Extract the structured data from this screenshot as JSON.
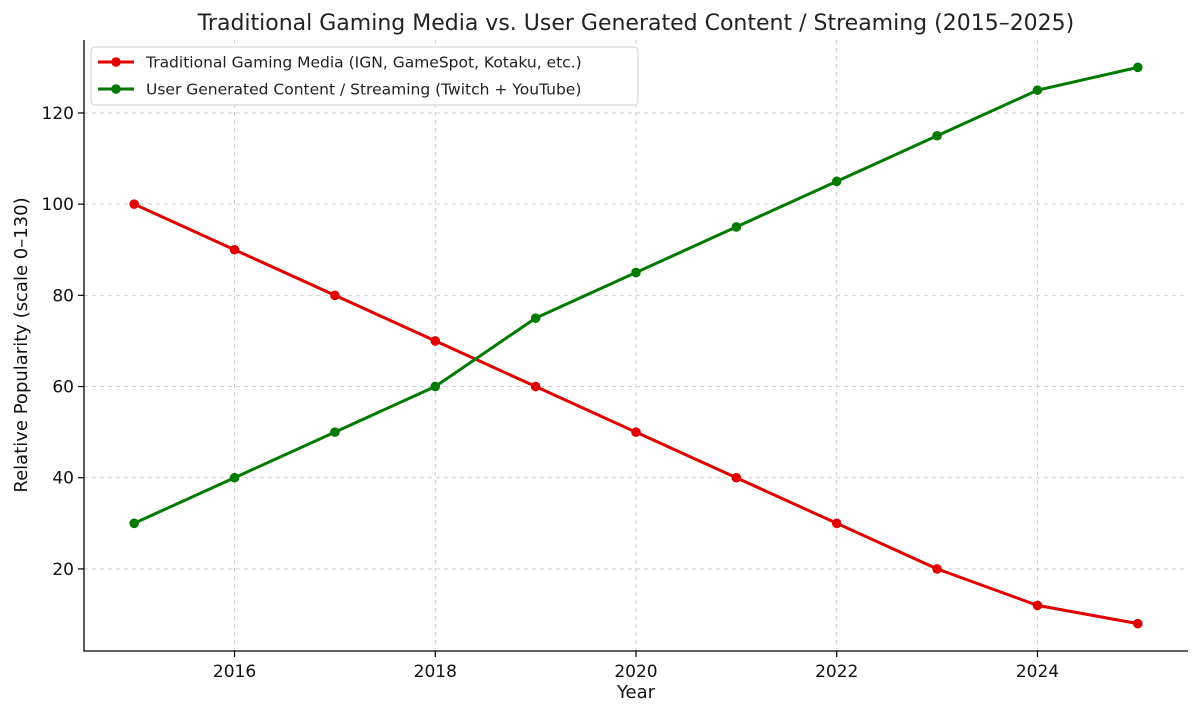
{
  "chart_data": {
    "type": "line",
    "title": "Traditional Gaming Media vs. User Generated Content / Streaming (2015–2025)",
    "xlabel": "Year",
    "ylabel": "Relative Popularity (scale 0–130)",
    "x": [
      2015,
      2016,
      2017,
      2018,
      2019,
      2020,
      2021,
      2022,
      2023,
      2024,
      2025
    ],
    "xlim": [
      2014.5,
      2025.5
    ],
    "ylim": [
      2,
      136
    ],
    "xticks": [
      2016,
      2018,
      2020,
      2022,
      2024
    ],
    "yticks": [
      20,
      40,
      60,
      80,
      100,
      120
    ],
    "grid": true,
    "legend_position": "top-left",
    "series": [
      {
        "name": "Traditional Gaming Media (IGN, GameSpot, Kotaku, etc.)",
        "color": "#e00000",
        "values": [
          100,
          90,
          80,
          70,
          60,
          50,
          40,
          30,
          20,
          12,
          8
        ]
      },
      {
        "name": "User Generated Content / Streaming (Twitch + YouTube)",
        "color": "#007a00",
        "values": [
          30,
          40,
          50,
          60,
          75,
          85,
          95,
          105,
          115,
          125,
          130
        ]
      }
    ]
  }
}
